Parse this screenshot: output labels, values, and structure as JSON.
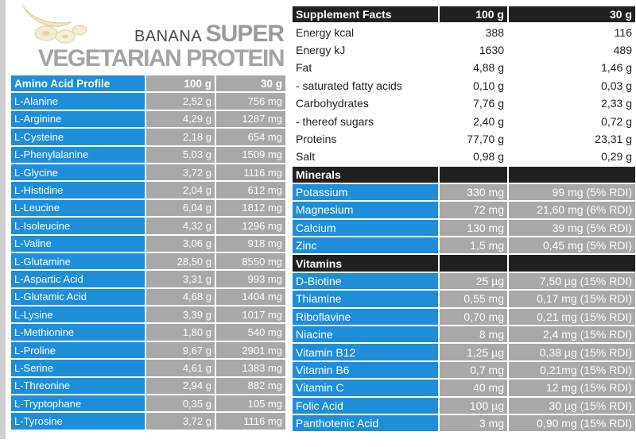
{
  "product": {
    "flavor": "BANANA",
    "name_word1": "SUPER",
    "name_line2": "VEGETARIAN PROTEIN"
  },
  "amino": {
    "headers": [
      "Amino Acid Profile",
      "100 g",
      "30 g"
    ],
    "rows": [
      [
        "L-Alanine",
        "2,52 g",
        "756 mg"
      ],
      [
        "L-Arginine",
        "4,29 g",
        "1287 mg"
      ],
      [
        "L-Cysteine",
        "2,18 g",
        "654 mg"
      ],
      [
        "L-Phenylalanine",
        "5,03 g",
        "1509 mg"
      ],
      [
        "L-Glycine",
        "3,72 g",
        "1116 mg"
      ],
      [
        "L-Histidine",
        "2,04 g",
        "612 mg"
      ],
      [
        "L-Leucine",
        "6,04 g",
        "1812 mg"
      ],
      [
        "L-Isoleucine",
        "4,32 g",
        "1296 mg"
      ],
      [
        "L-Valine",
        "3,06 g",
        "918 mg"
      ],
      [
        "L-Glutamine",
        "28,50 g",
        "8550 mg"
      ],
      [
        "L-Aspartic Acid",
        "3,31 g",
        "993 mg"
      ],
      [
        "L-Glutamic Acid",
        "4,68 g",
        "1404 mg"
      ],
      [
        "L-Lysine",
        "3,39 g",
        "1017 mg"
      ],
      [
        "L-Methionine",
        "1,80 g",
        "540 mg"
      ],
      [
        "L-Proline",
        "9,67 g",
        "2901 mg"
      ],
      [
        "L-Serine",
        "4,61 g",
        "1383 mg"
      ],
      [
        "L-Threonine",
        "2,94 g",
        "882 mg"
      ],
      [
        "L-Tryptophane",
        "0,35 g",
        "105 mg"
      ],
      [
        "L-Tyrosine",
        "3,72 g",
        "1116 mg"
      ]
    ]
  },
  "facts": {
    "headers": [
      "Supplement Facts",
      "100 g",
      "30 g"
    ],
    "basic": [
      [
        "Energy  kcal",
        "388",
        "116"
      ],
      [
        "Energy  kJ",
        "1630",
        "489"
      ],
      [
        "Fat",
        "4,88 g",
        "1,46 g"
      ],
      [
        "- saturated fatty acids",
        "0,10 g",
        "0,03 g"
      ],
      [
        "Carbohydrates",
        "7,76 g",
        "2,33 g"
      ],
      [
        "- thereof sugars",
        "2,40 g",
        "0,72 g"
      ],
      [
        "Proteins",
        "77,70 g",
        "23,31 g"
      ],
      [
        "Salt",
        "0,98 g",
        "0,29 g"
      ]
    ],
    "minerals_title": "Minerals",
    "minerals": [
      [
        "Potassium",
        "330 mg",
        "99 mg (5% RDI)"
      ],
      [
        "Magnesium",
        "72 mg",
        "21,60 mg (6% RDI)"
      ],
      [
        "Calcium",
        "130 mg",
        "39 mg (5% RDI)"
      ],
      [
        "Zinc",
        "1,5 mg",
        "0,45 mg (5% RDI)"
      ]
    ],
    "vitamins_title": "Vitamins",
    "vitamins": [
      [
        "D-Biotine",
        "25 µg",
        "7,50 µg (15% RDI)"
      ],
      [
        "Thiamine",
        "0,55 mg",
        "0,17 mg (15% RDI)"
      ],
      [
        "Riboflavine",
        "0,70 mg",
        "0,21 mg (15% RDI)"
      ],
      [
        "Niacine",
        "8 mg",
        "2,4 mg (15% RDI)"
      ],
      [
        "Vitamin B12",
        "1,25 µg",
        "0,38 µg (15% RDI)"
      ],
      [
        "Vitamin B6",
        "0,7 mg",
        "0,21mg (15% RDI)"
      ],
      [
        "Vitamin C",
        "40 mg",
        "12 mg (15% RDI)"
      ],
      [
        "Folic Acid",
        "100 µg",
        "30 µg (15% RDI)"
      ],
      [
        "Panthotenic Acid",
        "3 mg",
        "0,90 mg (15% RDI)"
      ]
    ]
  }
}
